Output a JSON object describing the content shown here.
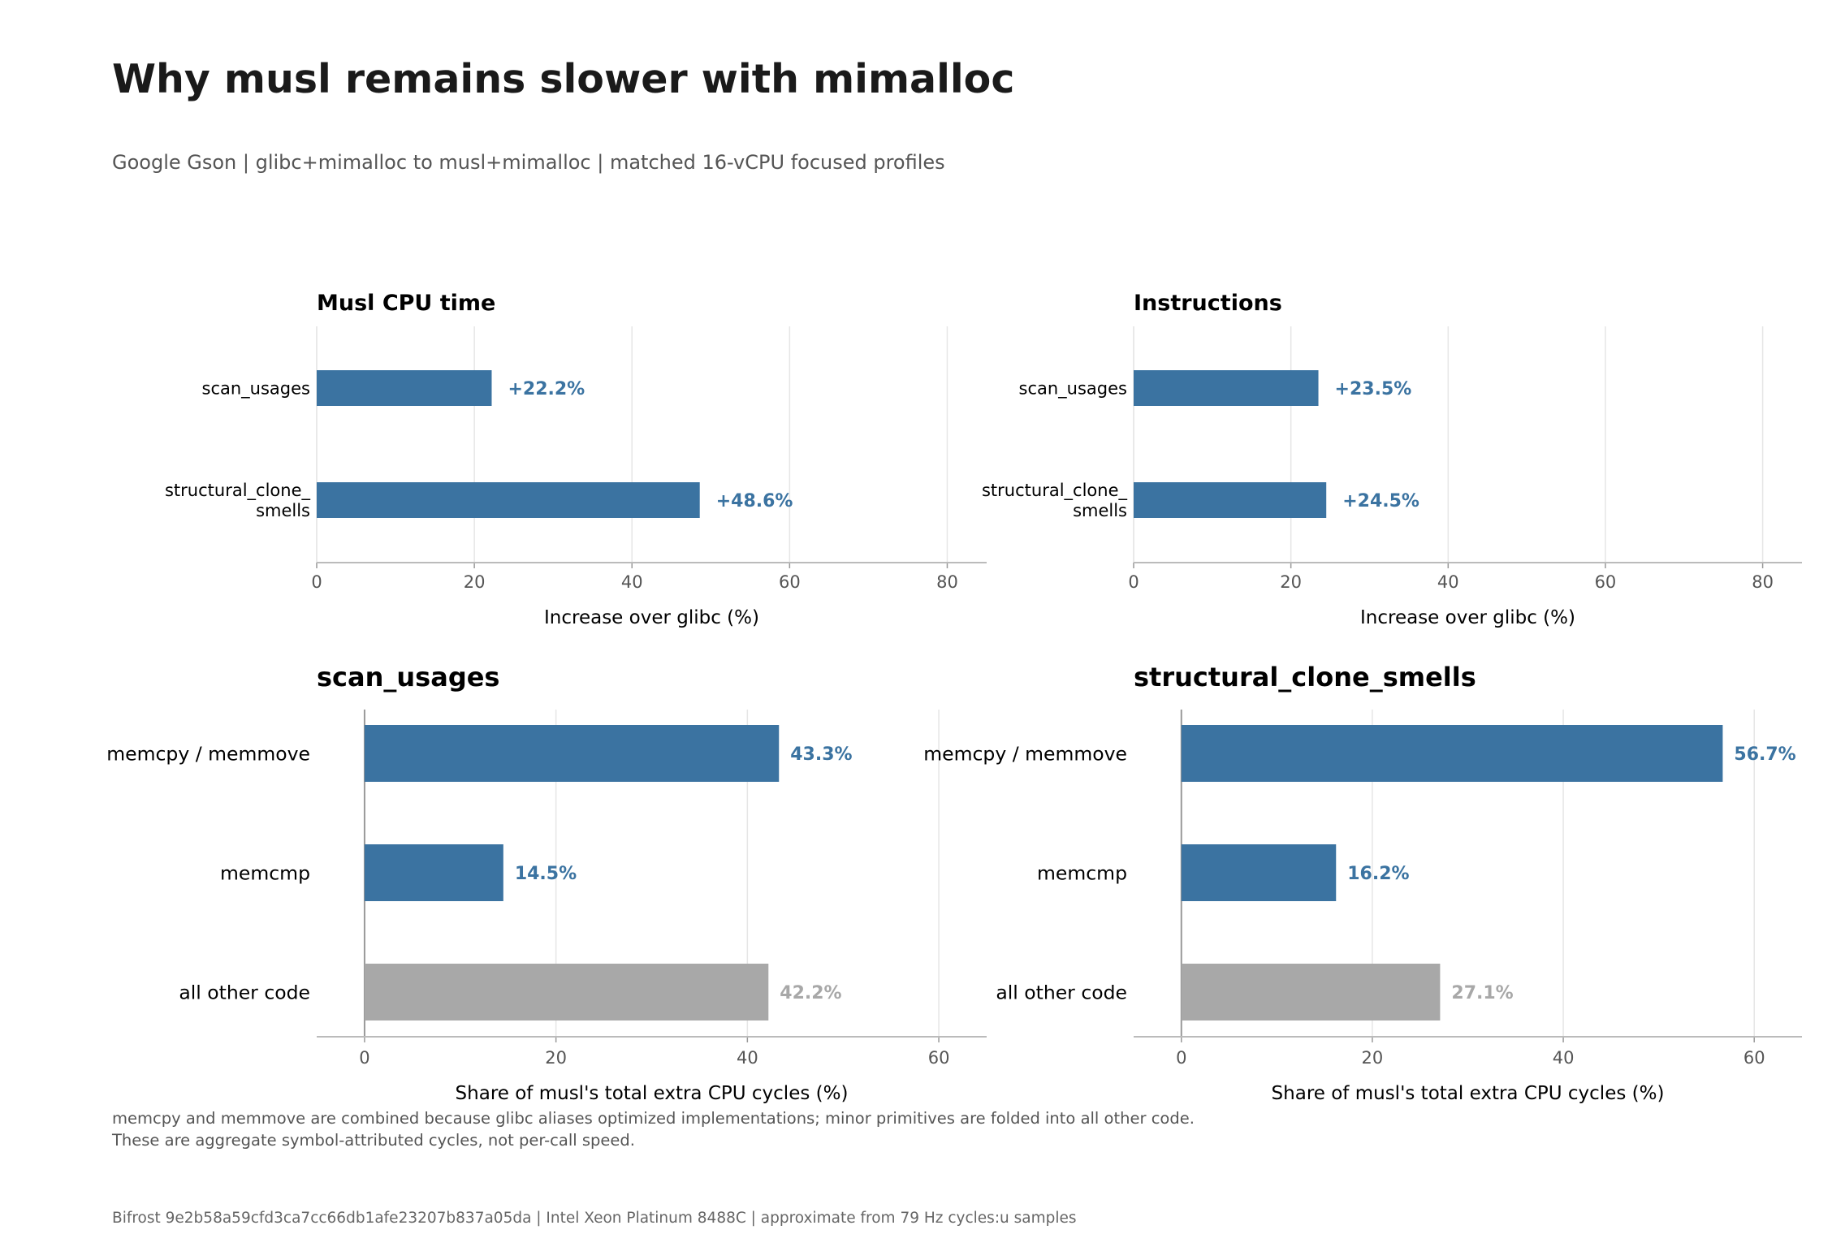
{
  "title": "Why musl remains slower with mimalloc",
  "subtitle": "Google Gson | glibc+mimalloc to musl+mimalloc | matched 16-vCPU focused profiles",
  "notes": [
    "memcpy and memmove are combined because glibc aliases optimized implementations; minor primitives are folded into all other code.",
    "These are aggregate symbol-attributed cycles, not per-call speed."
  ],
  "footer": "Bifrost 9e2b58a59cfd3ca7cc66db1afe23207b837a05da | Intel Xeon Platinum 8488C | approximate from 79 Hz cycles:u samples",
  "colors": {
    "primary": "#3b73a1",
    "other": "#a8a8a8",
    "title": "#1a1a1a",
    "text": "#000000",
    "muted": "#555555",
    "grid": "#e6e6e6",
    "axis": "#999999"
  },
  "chart_data": [
    {
      "type": "bar",
      "orientation": "horizontal",
      "title": "Musl CPU time",
      "categories": [
        "scan_usages",
        "structural_clone_\nsmells"
      ],
      "values": [
        22.2,
        48.6
      ],
      "value_labels": [
        "+22.2%",
        "+48.6%"
      ],
      "xlabel": "Increase over glibc (%)",
      "xlim": [
        0,
        85
      ],
      "xticks": [
        0,
        20,
        40,
        60,
        80
      ],
      "grid": true
    },
    {
      "type": "bar",
      "orientation": "horizontal",
      "title": "Instructions",
      "categories": [
        "scan_usages",
        "structural_clone_\nsmells"
      ],
      "values": [
        23.5,
        24.5
      ],
      "value_labels": [
        "+23.5%",
        "+24.5%"
      ],
      "xlabel": "Increase over glibc (%)",
      "xlim": [
        0,
        85
      ],
      "xticks": [
        0,
        20,
        40,
        60,
        80
      ],
      "grid": true
    },
    {
      "type": "bar",
      "orientation": "horizontal",
      "title": "scan_usages",
      "categories": [
        "memcpy / memmove",
        "memcmp",
        "all other code"
      ],
      "values": [
        43.3,
        14.5,
        42.2
      ],
      "value_labels": [
        "43.3%",
        "14.5%",
        "42.2%"
      ],
      "bar_colors": [
        "#3b73a1",
        "#3b73a1",
        "#a8a8a8"
      ],
      "xlabel": "Share of musl's total extra CPU cycles (%)",
      "xlim": [
        -5,
        65
      ],
      "xticks": [
        0,
        20,
        40,
        60
      ],
      "grid": true
    },
    {
      "type": "bar",
      "orientation": "horizontal",
      "title": "structural_clone_smells",
      "categories": [
        "memcpy / memmove",
        "memcmp",
        "all other code"
      ],
      "values": [
        56.7,
        16.2,
        27.1
      ],
      "value_labels": [
        "56.7%",
        "16.2%",
        "27.1%"
      ],
      "bar_colors": [
        "#3b73a1",
        "#3b73a1",
        "#a8a8a8"
      ],
      "xlabel": "Share of musl's total extra CPU cycles (%)",
      "xlim": [
        -5,
        65
      ],
      "xticks": [
        0,
        20,
        40,
        60
      ],
      "grid": true
    }
  ]
}
